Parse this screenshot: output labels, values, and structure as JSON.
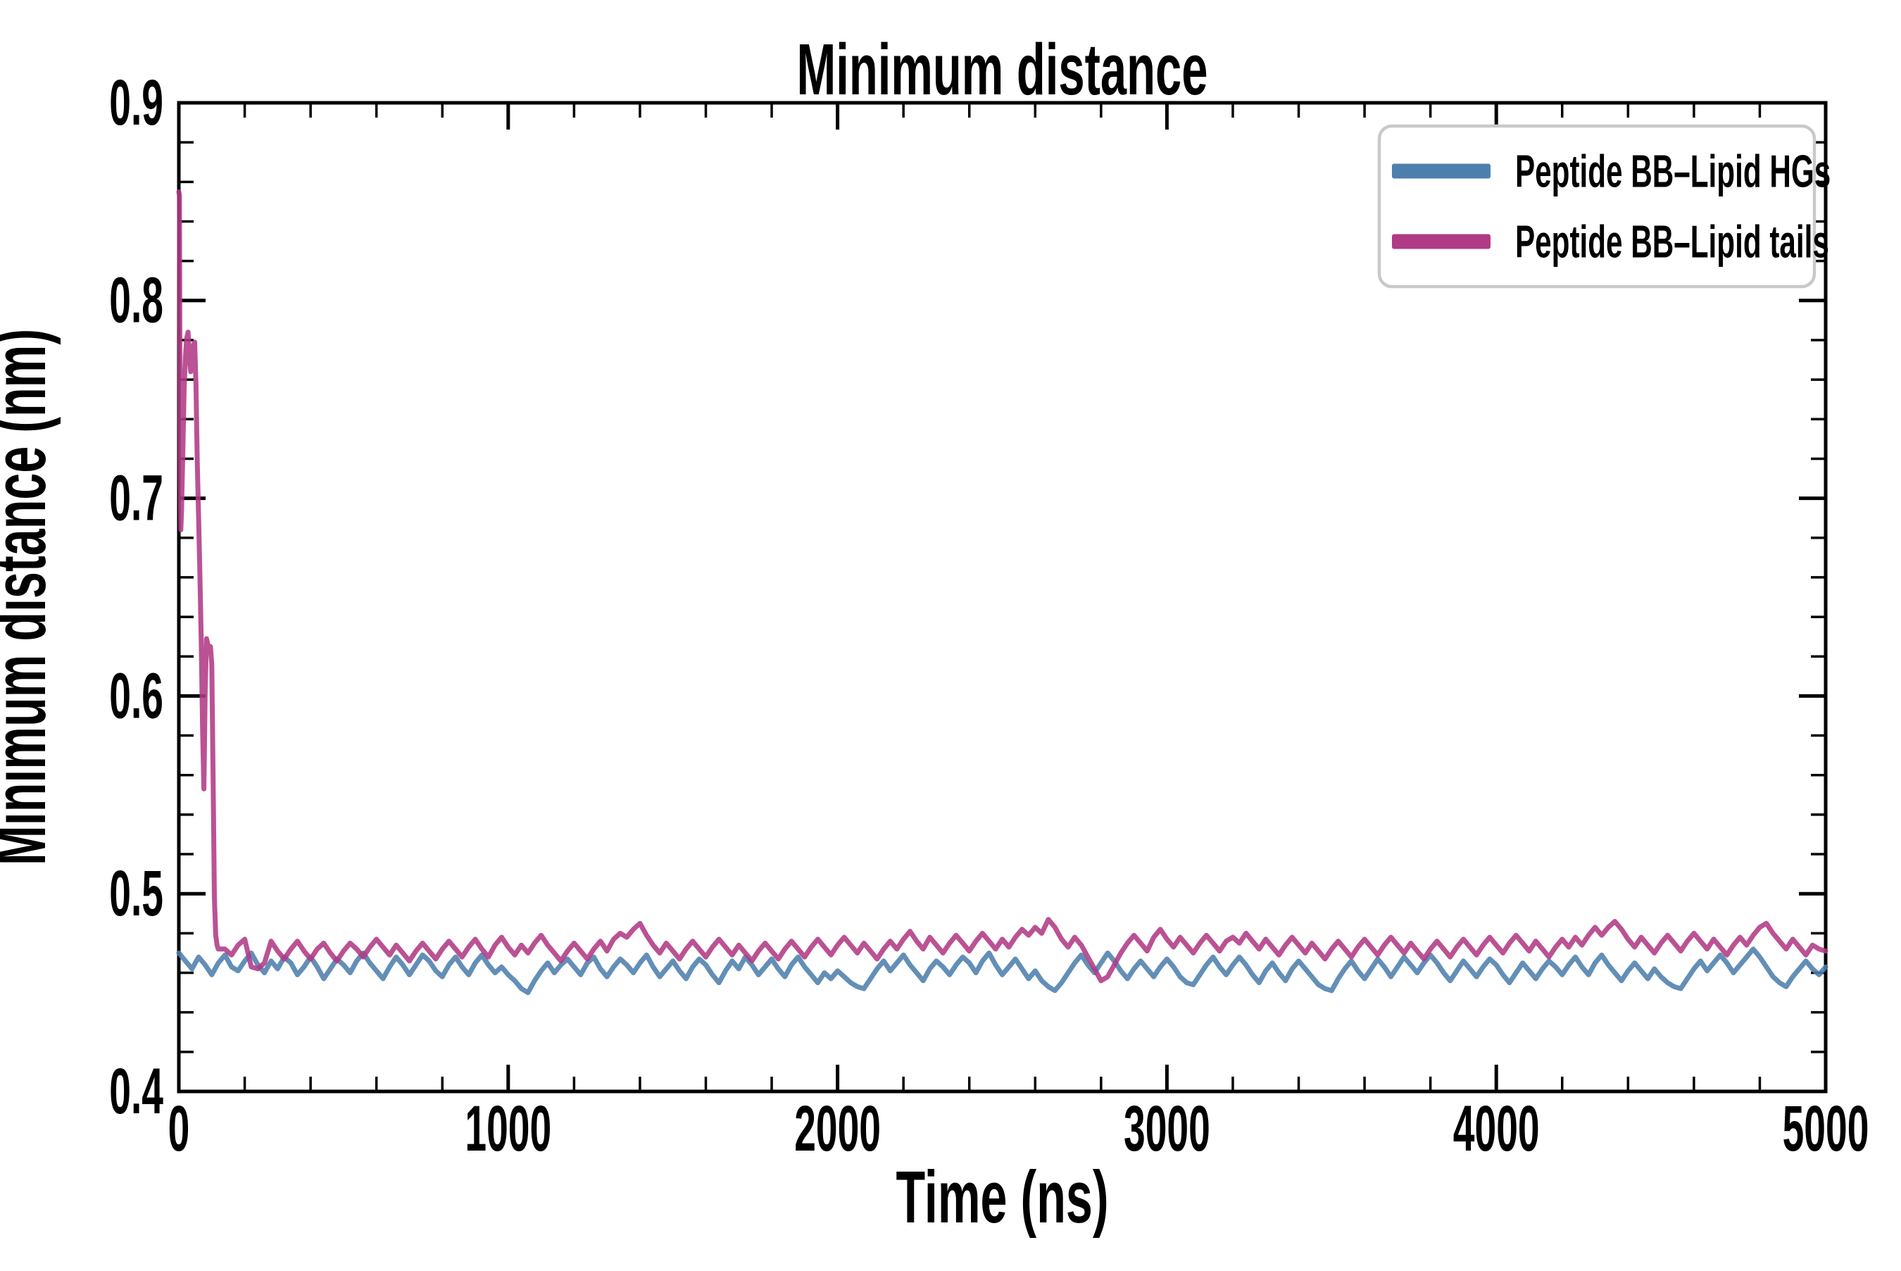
{
  "title": {
    "text": "Minimum distance"
  },
  "axes": {
    "x": {
      "label": "Time (ns)",
      "min": 0,
      "max": 5000,
      "major_ticks": [
        0,
        1000,
        2000,
        3000,
        4000,
        5000
      ],
      "major_tick_labels": [
        "0",
        "1000",
        "2000",
        "3000",
        "4000",
        "5000"
      ],
      "minor_step": 200
    },
    "y": {
      "label": "Minimum distance (nm)",
      "min": 0.4,
      "max": 0.9,
      "major_ticks": [
        0.4,
        0.5,
        0.6,
        0.7,
        0.8,
        0.9
      ],
      "major_tick_labels": [
        "0.4",
        "0.5",
        "0.6",
        "0.7",
        "0.8",
        "0.9"
      ],
      "minor_step": 0.02
    }
  },
  "legend": {
    "position": "upper right",
    "border_color": "#c9c9c9",
    "background": "#ffffff",
    "entries": [
      {
        "label": "Peptide BB–Lipid HGs",
        "color": "#4d7fad"
      },
      {
        "label": "Peptide BB–Lipid tails",
        "color": "#b03a85"
      }
    ]
  },
  "style": {
    "line_width": 7,
    "line_alpha": 0.88,
    "spine_color": "#000000",
    "blue": "#4d7fad",
    "pink": "#b03a85"
  },
  "chart_data": {
    "type": "line",
    "title": "Minimum distance",
    "xlabel": "Time (ns)",
    "ylabel": "Minimum distance (nm)",
    "xlim": [
      0,
      5000
    ],
    "ylim": [
      0.4,
      0.9
    ],
    "grid": false,
    "legend_position": "upper right",
    "series": [
      {
        "name": "Peptide BB–Lipid HGs",
        "color": "#4d7fad",
        "t0": 0,
        "dt": 20,
        "values": [
          0.47,
          0.466,
          0.462,
          0.468,
          0.464,
          0.459,
          0.465,
          0.469,
          0.463,
          0.461,
          0.466,
          0.47,
          0.464,
          0.46,
          0.466,
          0.462,
          0.468,
          0.465,
          0.459,
          0.463,
          0.468,
          0.463,
          0.457,
          0.462,
          0.467,
          0.464,
          0.46,
          0.466,
          0.47,
          0.465,
          0.461,
          0.457,
          0.463,
          0.468,
          0.464,
          0.459,
          0.464,
          0.469,
          0.466,
          0.461,
          0.458,
          0.464,
          0.468,
          0.463,
          0.459,
          0.465,
          0.469,
          0.464,
          0.46,
          0.463,
          0.459,
          0.456,
          0.452,
          0.45,
          0.456,
          0.461,
          0.465,
          0.46,
          0.464,
          0.467,
          0.463,
          0.459,
          0.465,
          0.468,
          0.462,
          0.458,
          0.463,
          0.467,
          0.464,
          0.46,
          0.465,
          0.469,
          0.463,
          0.458,
          0.462,
          0.466,
          0.461,
          0.457,
          0.463,
          0.467,
          0.464,
          0.459,
          0.455,
          0.461,
          0.466,
          0.462,
          0.468,
          0.464,
          0.459,
          0.463,
          0.467,
          0.462,
          0.458,
          0.464,
          0.468,
          0.463,
          0.459,
          0.455,
          0.46,
          0.457,
          0.461,
          0.458,
          0.455,
          0.453,
          0.452,
          0.457,
          0.462,
          0.466,
          0.461,
          0.465,
          0.469,
          0.464,
          0.46,
          0.456,
          0.462,
          0.466,
          0.463,
          0.459,
          0.464,
          0.468,
          0.465,
          0.46,
          0.466,
          0.47,
          0.464,
          0.459,
          0.463,
          0.467,
          0.462,
          0.457,
          0.461,
          0.456,
          0.453,
          0.451,
          0.455,
          0.46,
          0.465,
          0.469,
          0.464,
          0.46,
          0.465,
          0.47,
          0.466,
          0.461,
          0.457,
          0.462,
          0.466,
          0.462,
          0.458,
          0.463,
          0.467,
          0.463,
          0.458,
          0.455,
          0.454,
          0.459,
          0.464,
          0.468,
          0.463,
          0.459,
          0.464,
          0.468,
          0.464,
          0.459,
          0.455,
          0.461,
          0.465,
          0.46,
          0.456,
          0.462,
          0.466,
          0.462,
          0.458,
          0.454,
          0.452,
          0.451,
          0.457,
          0.462,
          0.466,
          0.461,
          0.457,
          0.462,
          0.467,
          0.463,
          0.458,
          0.463,
          0.468,
          0.464,
          0.46,
          0.465,
          0.469,
          0.465,
          0.46,
          0.456,
          0.461,
          0.466,
          0.462,
          0.458,
          0.463,
          0.467,
          0.464,
          0.459,
          0.455,
          0.46,
          0.465,
          0.461,
          0.457,
          0.462,
          0.466,
          0.463,
          0.459,
          0.464,
          0.468,
          0.463,
          0.459,
          0.465,
          0.469,
          0.464,
          0.46,
          0.456,
          0.461,
          0.465,
          0.461,
          0.457,
          0.462,
          0.458,
          0.455,
          0.453,
          0.452,
          0.457,
          0.462,
          0.466,
          0.461,
          0.465,
          0.469,
          0.465,
          0.46,
          0.464,
          0.468,
          0.472,
          0.468,
          0.463,
          0.458,
          0.455,
          0.453,
          0.458,
          0.462,
          0.466,
          0.462,
          0.459,
          0.463
        ]
      },
      {
        "name": "Peptide BB–Lipid tails",
        "color": "#b03a85",
        "head": [
          [
            0,
            0.855
          ],
          [
            2,
            0.853
          ],
          [
            4,
            0.72
          ],
          [
            6,
            0.684
          ],
          [
            8,
            0.692
          ],
          [
            12,
            0.722
          ],
          [
            16,
            0.755
          ],
          [
            20,
            0.772
          ],
          [
            24,
            0.781
          ],
          [
            28,
            0.784
          ],
          [
            32,
            0.772
          ],
          [
            36,
            0.764
          ],
          [
            40,
            0.771
          ],
          [
            44,
            0.777
          ],
          [
            48,
            0.779
          ],
          [
            52,
            0.758
          ],
          [
            56,
            0.718
          ],
          [
            60,
            0.69
          ],
          [
            64,
            0.662
          ],
          [
            68,
            0.628
          ],
          [
            72,
            0.584
          ],
          [
            76,
            0.553
          ],
          [
            80,
            0.602
          ],
          [
            84,
            0.629
          ],
          [
            88,
            0.626
          ],
          [
            92,
            0.622
          ],
          [
            96,
            0.625
          ],
          [
            100,
            0.616
          ],
          [
            104,
            0.558
          ],
          [
            108,
            0.498
          ],
          [
            112,
            0.479
          ],
          [
            116,
            0.474
          ],
          [
            120,
            0.472
          ]
        ],
        "t0": 140,
        "dt": 20,
        "values": [
          0.472,
          0.469,
          0.474,
          0.477,
          0.463,
          0.462,
          0.465,
          0.476,
          0.471,
          0.467,
          0.472,
          0.476,
          0.471,
          0.467,
          0.472,
          0.475,
          0.47,
          0.466,
          0.471,
          0.475,
          0.472,
          0.468,
          0.473,
          0.477,
          0.473,
          0.469,
          0.474,
          0.47,
          0.466,
          0.471,
          0.475,
          0.471,
          0.467,
          0.472,
          0.476,
          0.472,
          0.468,
          0.473,
          0.477,
          0.472,
          0.468,
          0.474,
          0.478,
          0.473,
          0.469,
          0.474,
          0.47,
          0.475,
          0.479,
          0.474,
          0.47,
          0.466,
          0.471,
          0.475,
          0.471,
          0.467,
          0.472,
          0.476,
          0.471,
          0.477,
          0.48,
          0.478,
          0.482,
          0.485,
          0.479,
          0.474,
          0.47,
          0.475,
          0.471,
          0.467,
          0.472,
          0.476,
          0.472,
          0.468,
          0.473,
          0.477,
          0.473,
          0.469,
          0.474,
          0.47,
          0.466,
          0.471,
          0.475,
          0.471,
          0.467,
          0.472,
          0.476,
          0.472,
          0.468,
          0.473,
          0.477,
          0.473,
          0.469,
          0.474,
          0.478,
          0.474,
          0.47,
          0.475,
          0.471,
          0.467,
          0.472,
          0.476,
          0.472,
          0.477,
          0.481,
          0.476,
          0.472,
          0.478,
          0.474,
          0.47,
          0.475,
          0.479,
          0.475,
          0.471,
          0.476,
          0.48,
          0.476,
          0.472,
          0.477,
          0.473,
          0.478,
          0.482,
          0.479,
          0.483,
          0.48,
          0.487,
          0.483,
          0.477,
          0.473,
          0.478,
          0.474,
          0.468,
          0.462,
          0.456,
          0.458,
          0.464,
          0.47,
          0.475,
          0.479,
          0.475,
          0.471,
          0.478,
          0.482,
          0.477,
          0.473,
          0.478,
          0.474,
          0.47,
          0.475,
          0.479,
          0.475,
          0.471,
          0.476,
          0.478,
          0.475,
          0.48,
          0.476,
          0.472,
          0.477,
          0.473,
          0.469,
          0.474,
          0.478,
          0.474,
          0.47,
          0.475,
          0.471,
          0.467,
          0.472,
          0.476,
          0.472,
          0.468,
          0.473,
          0.477,
          0.473,
          0.469,
          0.474,
          0.478,
          0.474,
          0.47,
          0.475,
          0.471,
          0.467,
          0.472,
          0.476,
          0.472,
          0.468,
          0.473,
          0.477,
          0.473,
          0.469,
          0.474,
          0.478,
          0.474,
          0.47,
          0.475,
          0.479,
          0.475,
          0.471,
          0.476,
          0.472,
          0.468,
          0.473,
          0.477,
          0.473,
          0.478,
          0.474,
          0.479,
          0.483,
          0.479,
          0.483,
          0.486,
          0.482,
          0.477,
          0.473,
          0.478,
          0.474,
          0.47,
          0.475,
          0.479,
          0.475,
          0.471,
          0.476,
          0.48,
          0.476,
          0.472,
          0.477,
          0.473,
          0.469,
          0.474,
          0.478,
          0.474,
          0.479,
          0.483,
          0.485,
          0.48,
          0.476,
          0.472,
          0.477,
          0.473,
          0.469,
          0.474,
          0.472,
          0.471
        ]
      }
    ]
  }
}
